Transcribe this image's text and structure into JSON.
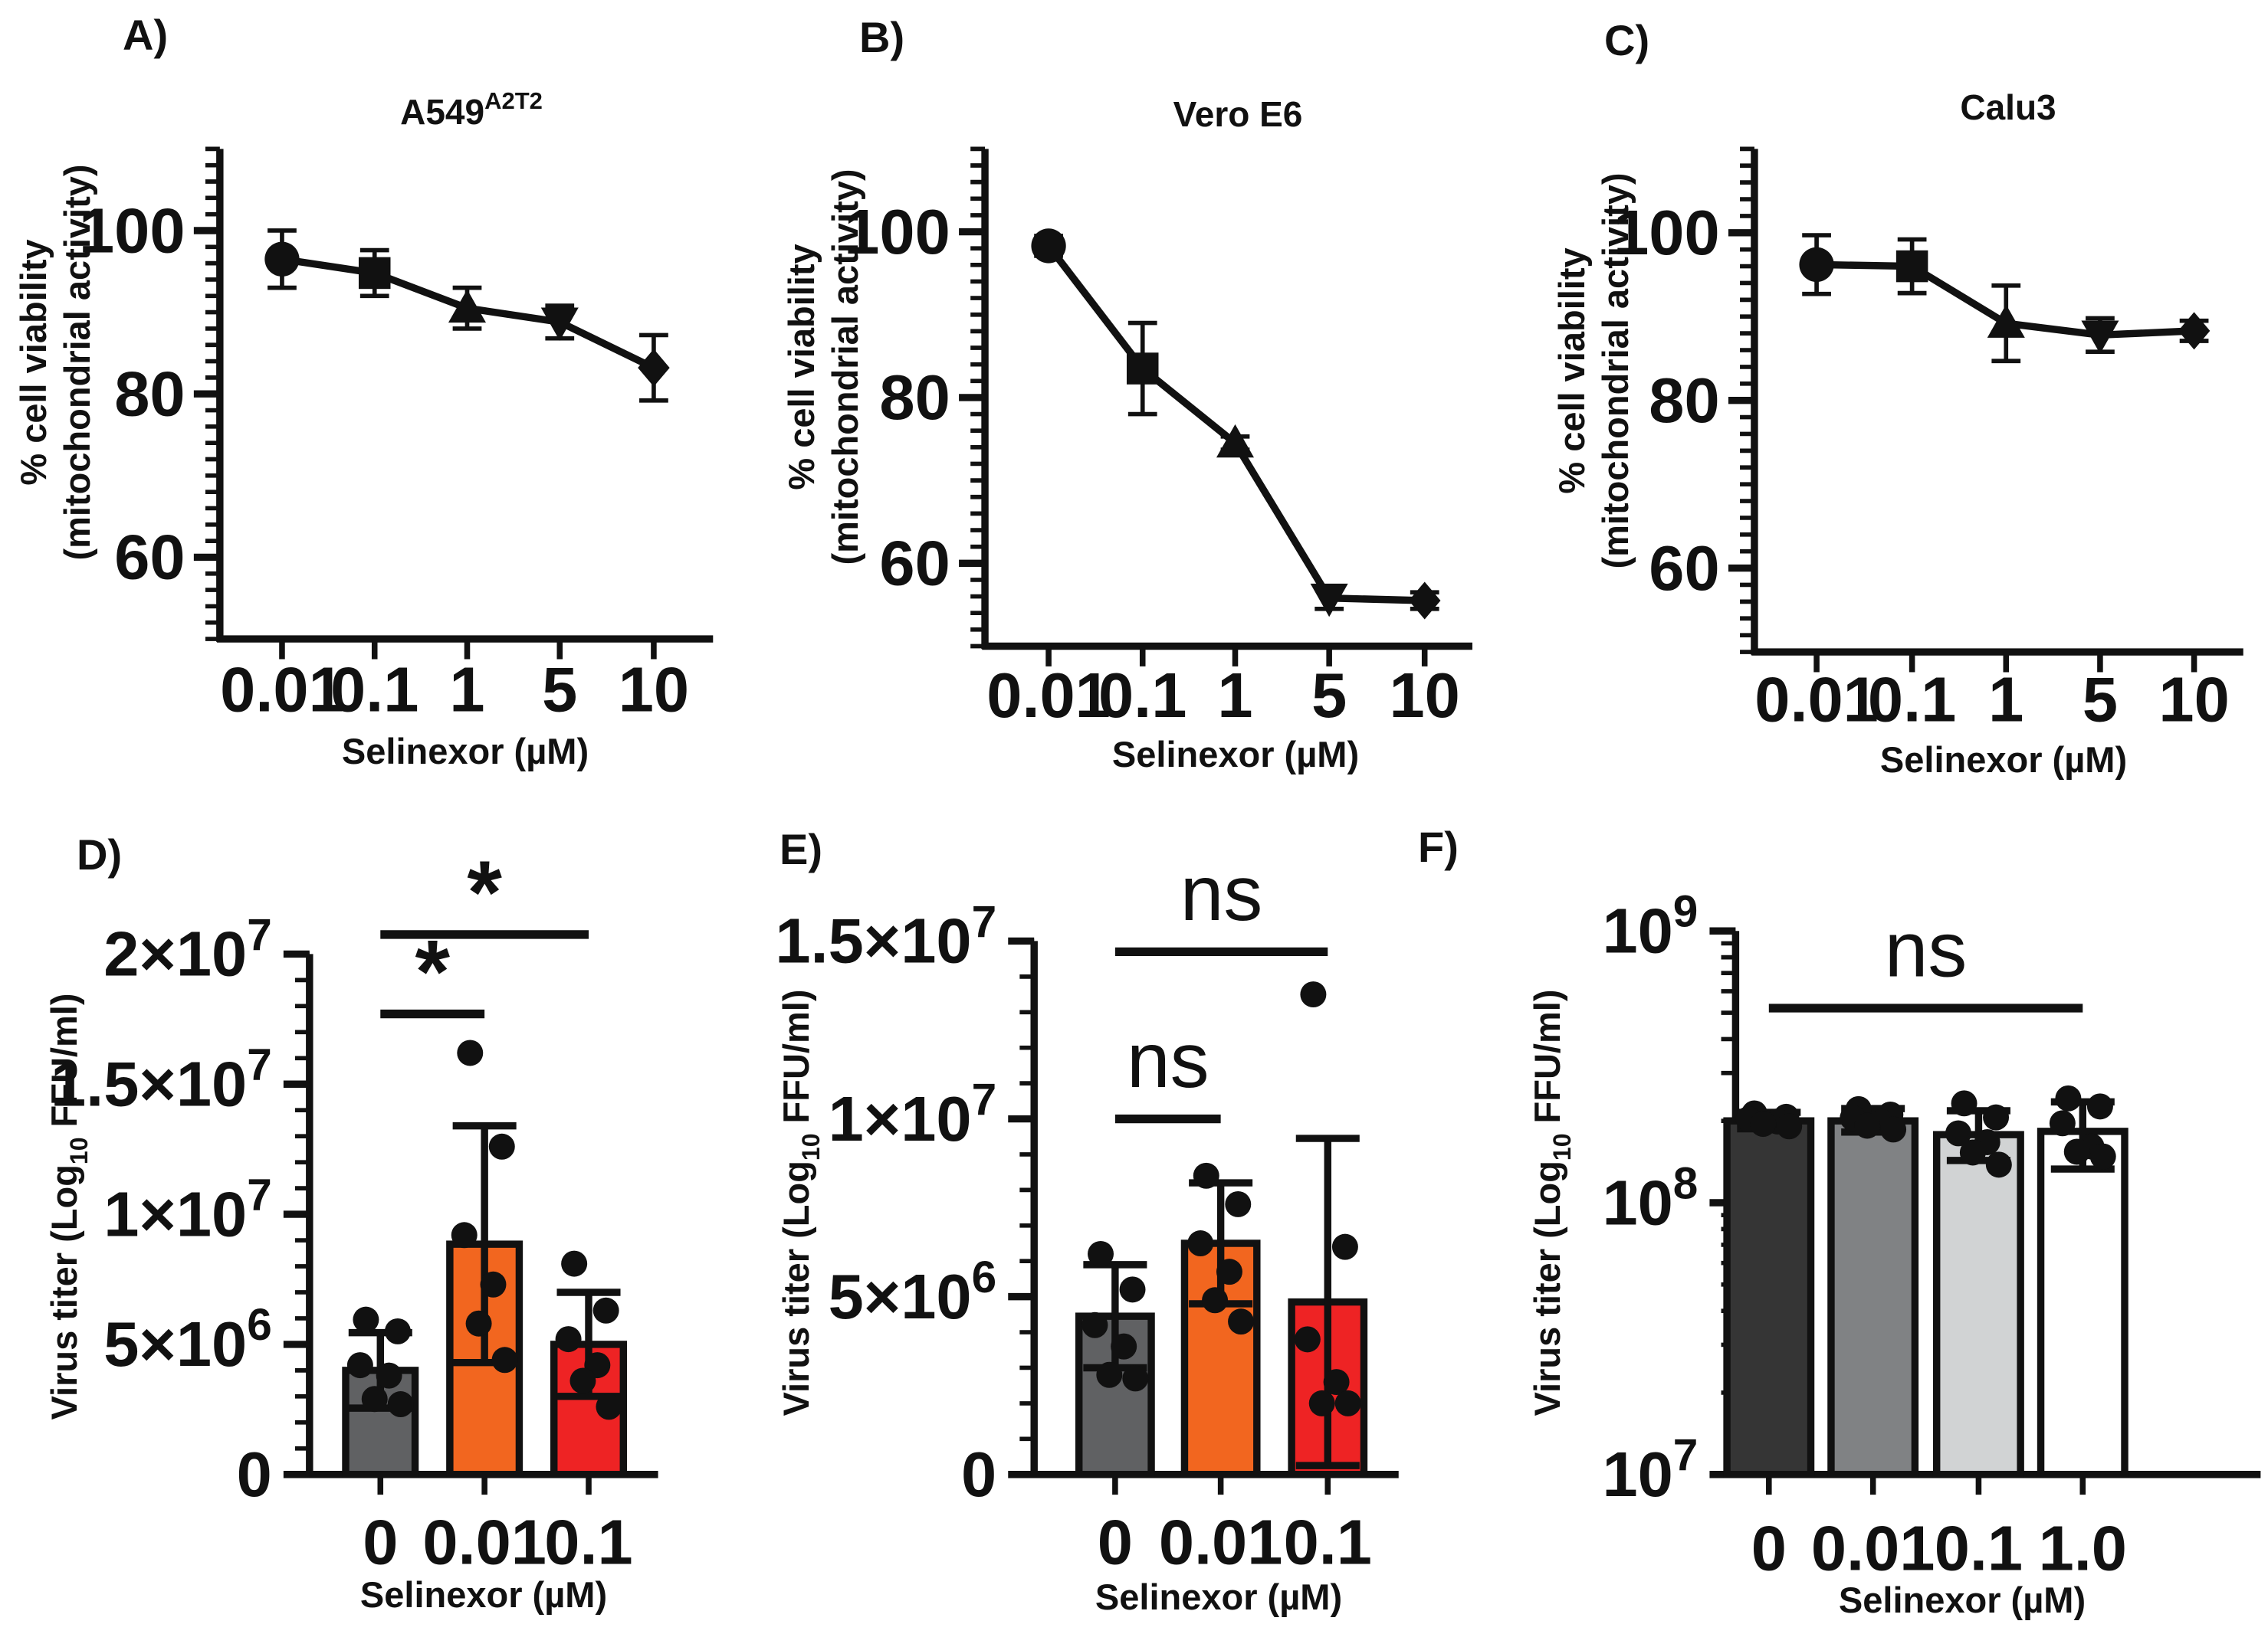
{
  "figure": {
    "description": "Selinexor cytotoxicity (A-C) and virus titer (D-F)"
  },
  "chart_data": [
    {
      "id": "A",
      "panel_label": "A)",
      "type": "line",
      "title_main": "A549",
      "title_sup": "A2T2",
      "xlabel": "Selinexor (µM)",
      "ylabel_line1": "% cell viability",
      "ylabel_line2": "(mitochondrial activity)",
      "categories": [
        "0.01",
        "0.1",
        "1",
        "5",
        "10"
      ],
      "markers": [
        "circle",
        "square",
        "triangle-up",
        "triangle-down",
        "diamond"
      ],
      "values": [
        96.5,
        94.8,
        90.5,
        88.8,
        83.2
      ],
      "errors": [
        3.5,
        2.8,
        2.5,
        2.0,
        4.0
      ],
      "ylim": [
        50,
        110
      ],
      "yticks": [
        60,
        80,
        100
      ],
      "yticks_labels": [
        "60",
        "80",
        "100"
      ],
      "minor_step": 2
    },
    {
      "id": "B",
      "panel_label": "B)",
      "type": "line",
      "title_main": "Vero E6",
      "title_sup": "",
      "xlabel": "Selinexor (µM)",
      "ylabel_line1": "% cell viability",
      "ylabel_line2": "(mitochondrial activity)",
      "categories": [
        "0.01",
        "0.1",
        "1",
        "5",
        "10"
      ],
      "markers": [
        "circle",
        "square",
        "triangle-up",
        "triangle-down",
        "diamond"
      ],
      "values": [
        98.3,
        83.5,
        74.5,
        55.8,
        55.5
      ],
      "errors": [
        1.2,
        5.5,
        0.8,
        1.3,
        1.0
      ],
      "ylim": [
        50,
        110
      ],
      "yticks": [
        60,
        80,
        100
      ],
      "yticks_labels": [
        "60",
        "80",
        "100"
      ],
      "minor_step": 2
    },
    {
      "id": "C",
      "panel_label": "C)",
      "type": "line",
      "title_main": "Calu3",
      "title_sup": "",
      "xlabel": "Selinexor (µM)",
      "ylabel_line1": "% cell viability",
      "ylabel_line2": "(mitochondrial activity)",
      "categories": [
        "0.01",
        "0.1",
        "1",
        "5",
        "10"
      ],
      "markers": [
        "circle",
        "square",
        "triangle-up",
        "triangle-down",
        "diamond"
      ],
      "values": [
        96.2,
        96.0,
        89.2,
        87.8,
        88.3
      ],
      "errors": [
        3.5,
        3.2,
        4.5,
        2.0,
        1.2
      ],
      "ylim": [
        50,
        110
      ],
      "yticks": [
        60,
        80,
        100
      ],
      "yticks_labels": [
        "60",
        "80",
        "100"
      ],
      "minor_step": 2
    },
    {
      "id": "D",
      "panel_label": "D)",
      "type": "bar",
      "scale": "linear",
      "xlabel": "Selinexor (µM)",
      "ylabel_main": "Virus titer (Log",
      "ylabel_sub": "10",
      "ylabel_end": " FFU/ml)",
      "categories": [
        "0",
        "0.01",
        "0.1"
      ],
      "values": [
        4000000,
        8850000,
        5000000
      ],
      "errors": [
        1450000,
        4550000,
        2000000
      ],
      "colors": [
        "#606163",
        "#f2661f",
        "#ee2324"
      ],
      "points": [
        [
          5950000,
          5500000,
          4200000,
          3800000,
          2900000,
          2700000
        ],
        [
          16200000,
          12600000,
          9200000,
          7300000,
          5800000,
          4400000
        ],
        [
          8100000,
          6300000,
          5200000,
          4200000,
          3600000,
          2600000
        ]
      ],
      "ylim": [
        0,
        20000000
      ],
      "yticks": [
        0,
        5000000,
        10000000,
        15000000,
        20000000
      ],
      "yticks_labels": [
        {
          "base": "0",
          "exp": ""
        },
        {
          "base": "5×10",
          "exp": "6"
        },
        {
          "base": "1×10",
          "exp": "7"
        },
        {
          "base": "1.5×10",
          "exp": "7"
        },
        {
          "base": "2×10",
          "exp": "7"
        }
      ],
      "minor_step": 1000000,
      "significance": [
        {
          "from": 0,
          "to": 2,
          "level": 20750000,
          "label": "*"
        },
        {
          "from": 0,
          "to": 1,
          "level": 17700000,
          "label": "*"
        }
      ]
    },
    {
      "id": "E",
      "panel_label": "E)",
      "type": "bar",
      "scale": "linear",
      "xlabel": "Selinexor (µM)",
      "ylabel_main": "Virus titer (Log",
      "ylabel_sub": "10",
      "ylabel_end": " FFU/ml)",
      "categories": [
        "0",
        "0.01",
        "0.1"
      ],
      "values": [
        4450000,
        6500000,
        4850000
      ],
      "errors": [
        1450000,
        1700000,
        4600000
      ],
      "colors": [
        "#606163",
        "#f2661f",
        "#ee2324"
      ],
      "points": [
        [
          6200000,
          5200000,
          4200000,
          3600000,
          2800000,
          2700000
        ],
        [
          8400000,
          7600000,
          6500000,
          5700000,
          4900000,
          4300000
        ],
        [
          13500000,
          6400000,
          3800000,
          2600000,
          2000000,
          2000000
        ]
      ],
      "ylim": [
        0,
        15000000
      ],
      "yticks": [
        0,
        5000000,
        10000000,
        15000000
      ],
      "yticks_labels": [
        {
          "base": "0",
          "exp": ""
        },
        {
          "base": "5×10",
          "exp": "6"
        },
        {
          "base": "1×10",
          "exp": "7"
        },
        {
          "base": "1.5×10",
          "exp": "7"
        }
      ],
      "minor_step": 1000000,
      "significance": [
        {
          "from": 0,
          "to": 2,
          "level": 14700000,
          "label": "ns"
        },
        {
          "from": 0,
          "to": 1,
          "level": 10000000,
          "label": "ns"
        }
      ]
    },
    {
      "id": "F",
      "panel_label": "F)",
      "type": "bar",
      "scale": "log",
      "xlabel": "Selinexor (µM)",
      "ylabel_main": "Virus titer (Log",
      "ylabel_sub": "10",
      "ylabel_end": " FFU/ml)",
      "categories": [
        "0",
        "0.01",
        "0.1",
        "1.0"
      ],
      "values": [
        200000000,
        200000000,
        178000000,
        183000000
      ],
      "errors_up": [
        15000000,
        22000000,
        40000000,
        52000000
      ],
      "errors_down": [
        13000000,
        18000000,
        35000000,
        50000000
      ],
      "colors": [
        "#353535",
        "#808284",
        "#d1d3d4",
        "#ffffff"
      ],
      "points": [
        [
          213000000,
          207000000,
          203000000,
          199000000,
          195000000,
          191000000
        ],
        [
          221000000,
          211000000,
          205000000,
          198000000,
          192000000,
          186000000
        ],
        [
          232000000,
          206000000,
          180000000,
          167000000,
          153000000,
          138000000
        ],
        [
          242000000,
          226000000,
          196000000,
          161000000,
          154000000,
          148000000
        ]
      ],
      "ylim": [
        10000000,
        1000000000
      ],
      "yticks": [
        10000000,
        100000000,
        1000000000
      ],
      "yticks_labels": [
        {
          "base": "10",
          "exp": "7"
        },
        {
          "base": "10",
          "exp": "8"
        },
        {
          "base": "10",
          "exp": "9"
        }
      ],
      "significance": [
        {
          "from": 0,
          "to": 3,
          "level": 520000000,
          "label": "ns"
        }
      ]
    }
  ]
}
